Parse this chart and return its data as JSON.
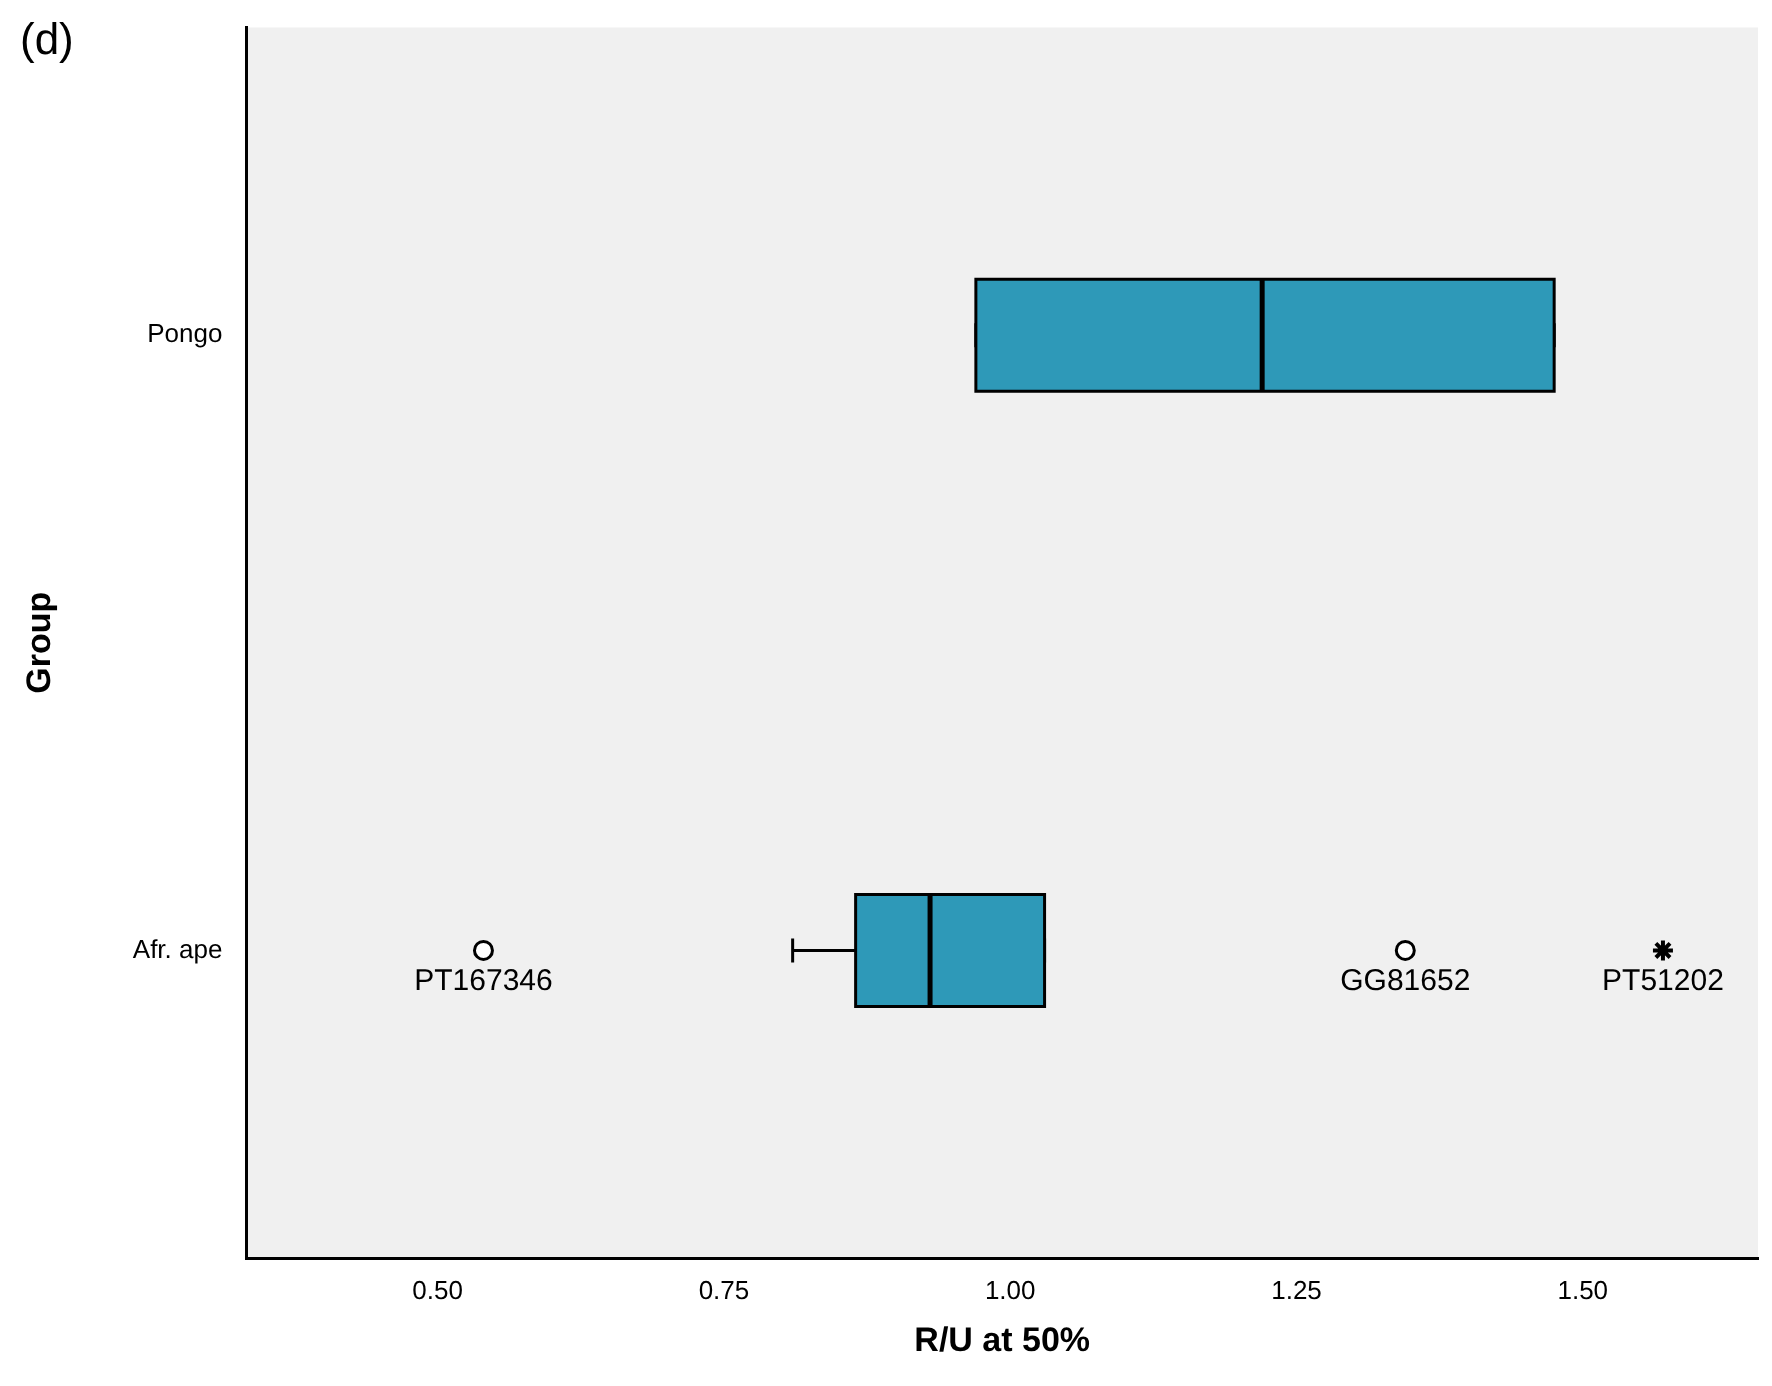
{
  "chart_data": {
    "type": "box",
    "orientation": "horizontal",
    "categories": [
      "Pongo",
      "Afr. ape"
    ],
    "xlabel": "R/U at 50%",
    "ylabel": "Group",
    "grid": false,
    "xlim": [
      0.333,
      1.653
    ],
    "xticks": [
      {
        "value": 0.5,
        "label": "0.50"
      },
      {
        "value": 0.75,
        "label": "0.75"
      },
      {
        "value": 1,
        "label": "1.00"
      },
      {
        "value": 1.25,
        "label": "1.25"
      },
      {
        "value": 1.5,
        "label": "1.50"
      }
    ],
    "annotations": [
      "(d)",
      {
        "text": "PT167346",
        "x": 0.54,
        "y": "Afr. ape"
      },
      {
        "text": "GG81652",
        "x": 1.345,
        "y": "Afr. ape"
      },
      {
        "text": "PT51202",
        "x": 1.57,
        "y": "Afr. ape"
      }
    ],
    "series": [
      {
        "color": "#2e99b8",
        "boxes": [
          {
            "low": 0.97,
            "q1": 0.97,
            "median": 1.22,
            "q3": 1.475,
            "high": 1.475
          },
          {
            "low": 0.81,
            "q1": 0.865,
            "median": 0.93,
            "q3": 1.03,
            "high": 1.03
          }
        ]
      },
      {
        "type": "scatter",
        "marker": "circle",
        "color": "#000000",
        "x": [
          "Afr. ape",
          "Afr. ape"
        ],
        "values": [
          0.54,
          1.345
        ]
      },
      {
        "type": "scatter",
        "marker": "cross",
        "color": "#000000",
        "x": [
          "Afr. ape"
        ],
        "values": [
          1.57
        ]
      }
    ]
  }
}
